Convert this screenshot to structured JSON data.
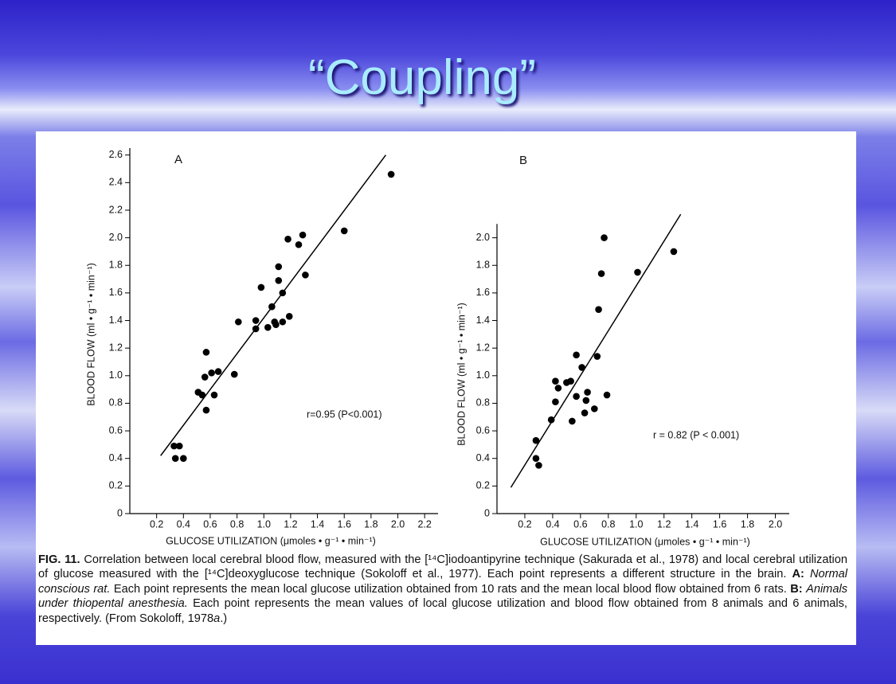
{
  "slide": {
    "title": "“Coupling”",
    "caption": [
      "FIG. 11.",
      "Correlation between local cerebral blood flow, measured with the [¹⁴C]iodoantipyrine technique (Sakurada et al., 1978) and local cerebral utilization of glucose measured with the [¹⁴C]deoxyglucose technique (Sokoloff et al., 1977). Each point represents a different structure in the brain.",
      "A:",
      "Normal conscious rat.",
      "Each point represents the mean local glucose utilization obtained from 10 rats and the mean local blood flow obtained from 6 rats.",
      "B:",
      "Animals under thiopental anesthesia.",
      "Each point represents the mean values of local glucose utilization and blood flow obtained from 8 animals and 6 animals, respectively. (From Sokoloff, 1978",
      "a",
      ".)"
    ]
  },
  "chart_data": [
    {
      "type": "scatter",
      "title": "A",
      "annotation": "r=0.95 (P<0.001)",
      "x_label": "GLUCOSE UTILIZATION (μmoles • g⁻¹ • min⁻¹)",
      "y_label": "BLOOD FLOW (ml • g⁻¹ • min⁻¹)",
      "color": "#000000",
      "x": [
        1.95,
        1.6,
        1.29,
        1.26,
        1.18,
        1.11,
        1.31,
        1.11,
        0.98,
        1.14,
        1.06,
        0.81,
        0.94,
        1.08,
        1.19,
        1.14,
        1.09,
        1.03,
        0.94,
        0.57,
        0.66,
        0.61,
        0.56,
        0.78,
        0.51,
        0.54,
        0.63,
        0.57,
        0.33,
        0.37,
        0.34,
        0.4
      ],
      "values": [
        2.46,
        2.05,
        2.02,
        1.95,
        1.99,
        1.79,
        1.73,
        1.69,
        1.64,
        1.6,
        1.5,
        1.39,
        1.4,
        1.39,
        1.43,
        1.39,
        1.37,
        1.35,
        1.34,
        1.17,
        1.03,
        1.02,
        0.99,
        1.01,
        0.88,
        0.86,
        0.86,
        0.75,
        0.49,
        0.49,
        0.4,
        0.4
      ],
      "trend_line": {
        "x": [
          0.23,
          1.91
        ],
        "y": [
          0.42,
          2.6
        ]
      },
      "xlim": [
        0,
        2.3
      ],
      "ylim": [
        0,
        2.65
      ],
      "xticks": [
        0.2,
        0.4,
        0.6,
        0.8,
        {
          "value": 1,
          "label": "1.0"
        },
        1.2,
        1.4,
        1.6,
        1.8,
        {
          "value": 2,
          "label": "2.0"
        },
        2.2
      ],
      "yticks": [
        0,
        0.2,
        0.4,
        0.6,
        0.8,
        {
          "value": 1,
          "label": "1.0"
        },
        1.2,
        1.4,
        1.6,
        1.8,
        {
          "value": 2,
          "label": "2.0"
        },
        2.2,
        2.4,
        2.6
      ]
    },
    {
      "type": "scatter",
      "title": "B",
      "annotation": "r = 0.82 (P < 0.001)",
      "x_label": "GLUCOSE UTILIZATION (μmoles • g⁻¹ • min⁻¹)",
      "y_label": "BLOOD FLOW (ml • g⁻¹ • min⁻¹)",
      "color": "#000000",
      "x": [
        0.77,
        0.75,
        1.27,
        1.01,
        0.73,
        0.57,
        0.72,
        0.61,
        0.42,
        0.53,
        0.5,
        0.44,
        0.42,
        0.57,
        0.65,
        0.79,
        0.64,
        0.7,
        0.63,
        0.54,
        0.39,
        0.28,
        0.28,
        0.3
      ],
      "values": [
        2.0,
        1.74,
        1.9,
        1.75,
        1.48,
        1.15,
        1.14,
        1.06,
        0.96,
        0.96,
        0.95,
        0.91,
        0.81,
        0.85,
        0.88,
        0.86,
        0.82,
        0.76,
        0.73,
        0.67,
        0.68,
        0.53,
        0.4,
        0.35
      ],
      "trend_line": {
        "x": [
          0.1,
          1.32
        ],
        "y": [
          0.19,
          2.17
        ]
      },
      "xlim": [
        0,
        2.1
      ],
      "ylim": [
        0,
        2.1
      ],
      "xticks": [
        0.2,
        0.4,
        0.6,
        0.8,
        {
          "value": 1,
          "label": "1.0"
        },
        1.2,
        1.4,
        1.6,
        1.8,
        {
          "value": 2,
          "label": "2.0"
        }
      ],
      "yticks": [
        0,
        0.2,
        0.4,
        0.6,
        0.8,
        {
          "value": 1,
          "label": "1.0"
        },
        1.2,
        1.4,
        1.6,
        1.8,
        {
          "value": 2,
          "label": "2.0"
        }
      ]
    }
  ]
}
